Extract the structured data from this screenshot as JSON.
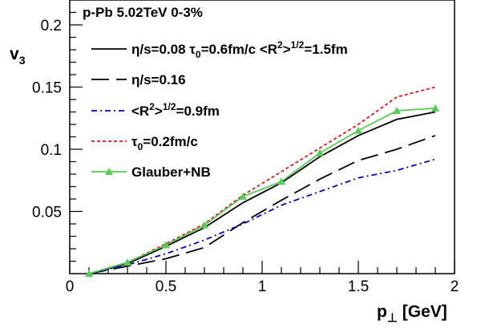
{
  "chart_data": {
    "type": "line",
    "header": "p-Pb 5.02TeV   0-3%",
    "xlabel": "p⊥ [GeV]",
    "ylabel": "v3",
    "xlim": [
      0,
      2
    ],
    "ylim": [
      0,
      0.22
    ],
    "xticks": [
      0,
      0.5,
      1,
      1.5,
      2
    ],
    "xtick_labels": [
      "0",
      "0.5",
      "1",
      "1.5",
      "2"
    ],
    "yticks": [
      0.05,
      0.1,
      0.15,
      0.2
    ],
    "ytick_labels": [
      "0.05",
      "0.1",
      "0.15",
      "0.2"
    ],
    "grid": false,
    "legend_position": "top-left",
    "series": [
      {
        "name": "η/s=0.08 τ0=0.6fm/c <R²>^1/2=1.5fm",
        "label_parts": [
          [
            "η/s=0.08  τ",
            ""
          ],
          [
            "0",
            "sub"
          ],
          [
            "=0.6fm/c  <R",
            ""
          ],
          [
            "2",
            "sup"
          ],
          [
            ">",
            ""
          ],
          [
            "1/2",
            "sup"
          ],
          [
            "=1.5fm",
            ""
          ]
        ],
        "color": "#000000",
        "dash": "",
        "x": [
          0.1,
          0.3,
          0.5,
          0.7,
          0.9,
          1.1,
          1.3,
          1.5,
          1.7,
          1.9
        ],
        "y": [
          0,
          0.008,
          0.022,
          0.037,
          0.057,
          0.073,
          0.094,
          0.111,
          0.124,
          0.13
        ]
      },
      {
        "name": "η/s=0.16",
        "label_parts": [
          [
            "η/s=0.16",
            ""
          ]
        ],
        "color": "#000000",
        "dash": "22,9",
        "x": [
          0.1,
          0.3,
          0.5,
          0.7,
          0.9,
          1.1,
          1.3,
          1.5,
          1.7,
          1.9
        ],
        "y": [
          0,
          0.006,
          0.012,
          0.021,
          0.041,
          0.059,
          0.076,
          0.091,
          0.1,
          0.111
        ]
      },
      {
        "name": "<R²>^1/2=0.9fm",
        "label_parts": [
          [
            "<R",
            ""
          ],
          [
            "2",
            "sup"
          ],
          [
            ">",
            ""
          ],
          [
            "1/2",
            "sup"
          ],
          [
            "=0.9fm",
            ""
          ]
        ],
        "color": "#0000cc",
        "dash": "7,4,2,4",
        "x": [
          0.1,
          0.3,
          0.5,
          0.7,
          0.9,
          1.1,
          1.3,
          1.5,
          1.7,
          1.9
        ],
        "y": [
          0,
          0.007,
          0.016,
          0.027,
          0.04,
          0.055,
          0.066,
          0.077,
          0.083,
          0.092
        ]
      },
      {
        "name": "τ0=0.2fm/c",
        "label_parts": [
          [
            "τ",
            ""
          ],
          [
            "0",
            "sub"
          ],
          [
            "=0.2fm/c",
            ""
          ]
        ],
        "color": "#e8161c",
        "dash": "4,3",
        "x": [
          0.1,
          0.3,
          0.5,
          0.7,
          0.9,
          1.1,
          1.3,
          1.5,
          1.7,
          1.9
        ],
        "y": [
          0,
          0.009,
          0.024,
          0.04,
          0.063,
          0.082,
          0.101,
          0.12,
          0.142,
          0.15
        ]
      },
      {
        "name": "Glauber+NB",
        "label_parts": [
          [
            "Glauber+NB",
            ""
          ]
        ],
        "color": "#55cc55",
        "dash": "",
        "marker": "triangle",
        "x": [
          0.1,
          0.3,
          0.5,
          0.7,
          0.9,
          1.1,
          1.3,
          1.5,
          1.7,
          1.9
        ],
        "y": [
          0,
          0.009,
          0.023,
          0.039,
          0.062,
          0.074,
          0.097,
          0.115,
          0.131,
          0.133
        ]
      }
    ]
  }
}
